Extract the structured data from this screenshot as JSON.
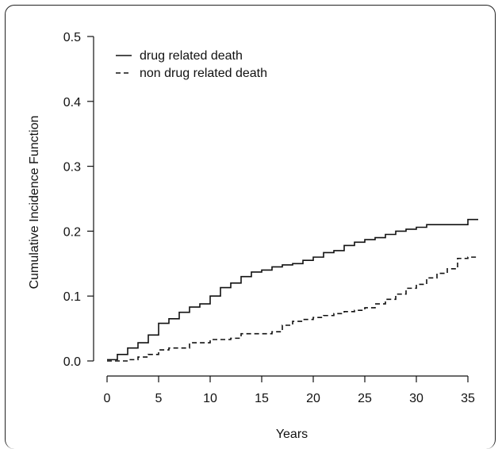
{
  "chart_data": {
    "type": "line",
    "title": "",
    "xlabel": "Years",
    "ylabel": "Cumulative Incidence Function",
    "xlim": [
      0,
      36
    ],
    "ylim": [
      0,
      0.5
    ],
    "x_ticks": [
      "0",
      "5",
      "10",
      "15",
      "20",
      "25",
      "30",
      "35"
    ],
    "y_ticks": [
      "0.0",
      "0.1",
      "0.2",
      "0.3",
      "0.4",
      "0.5"
    ],
    "grid": false,
    "legend": {
      "position": "top-left",
      "entries": [
        "drug related death",
        "non drug related death"
      ]
    },
    "series": [
      {
        "name": "drug related death",
        "style": "solid",
        "color": "#111111",
        "points": [
          [
            0,
            0.002
          ],
          [
            1,
            0.01
          ],
          [
            2,
            0.02
          ],
          [
            3,
            0.028
          ],
          [
            4,
            0.04
          ],
          [
            5,
            0.058
          ],
          [
            6,
            0.065
          ],
          [
            7,
            0.075
          ],
          [
            8,
            0.083
          ],
          [
            9,
            0.088
          ],
          [
            10,
            0.1
          ],
          [
            11,
            0.113
          ],
          [
            12,
            0.12
          ],
          [
            13,
            0.13
          ],
          [
            14,
            0.137
          ],
          [
            15,
            0.14
          ],
          [
            16,
            0.145
          ],
          [
            17,
            0.148
          ],
          [
            18,
            0.15
          ],
          [
            19,
            0.155
          ],
          [
            20,
            0.16
          ],
          [
            21,
            0.167
          ],
          [
            22,
            0.17
          ],
          [
            23,
            0.178
          ],
          [
            24,
            0.183
          ],
          [
            25,
            0.187
          ],
          [
            26,
            0.19
          ],
          [
            27,
            0.195
          ],
          [
            28,
            0.2
          ],
          [
            29,
            0.203
          ],
          [
            30,
            0.206
          ],
          [
            31,
            0.21
          ],
          [
            32,
            0.21
          ],
          [
            33,
            0.21
          ],
          [
            34,
            0.21
          ],
          [
            35,
            0.218
          ],
          [
            36,
            0.218
          ]
        ]
      },
      {
        "name": "non drug related death",
        "style": "dashed",
        "color": "#111111",
        "points": [
          [
            0,
            0.0
          ],
          [
            2,
            0.002
          ],
          [
            3,
            0.006
          ],
          [
            4,
            0.01
          ],
          [
            5,
            0.017
          ],
          [
            6,
            0.02
          ],
          [
            8,
            0.028
          ],
          [
            10,
            0.033
          ],
          [
            12,
            0.035
          ],
          [
            13,
            0.042
          ],
          [
            16,
            0.045
          ],
          [
            17,
            0.055
          ],
          [
            18,
            0.061
          ],
          [
            19,
            0.064
          ],
          [
            20,
            0.067
          ],
          [
            21,
            0.07
          ],
          [
            22,
            0.073
          ],
          [
            23,
            0.076
          ],
          [
            24,
            0.078
          ],
          [
            25,
            0.082
          ],
          [
            26,
            0.088
          ],
          [
            27,
            0.095
          ],
          [
            28,
            0.103
          ],
          [
            29,
            0.112
          ],
          [
            30,
            0.118
          ],
          [
            31,
            0.128
          ],
          [
            32,
            0.135
          ],
          [
            33,
            0.142
          ],
          [
            34,
            0.158
          ],
          [
            35,
            0.16
          ],
          [
            36,
            0.16
          ]
        ]
      }
    ]
  }
}
